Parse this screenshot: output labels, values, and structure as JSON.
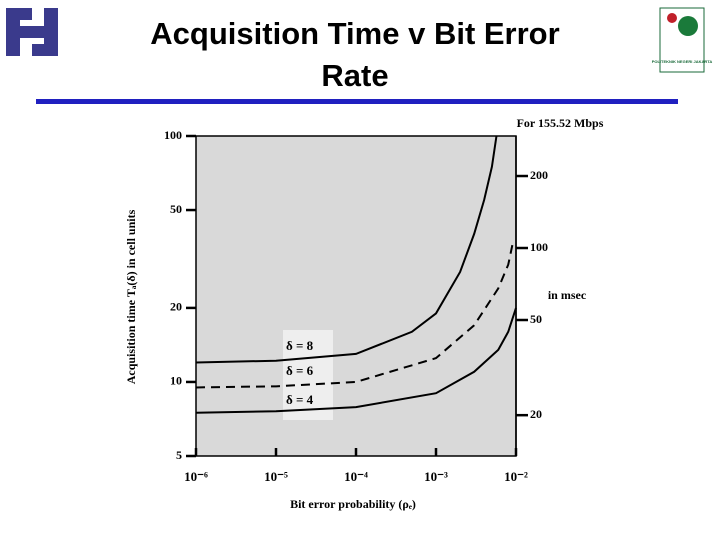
{
  "slide_title": "Acquisition Time v Bit Error Rate",
  "logo_text": "POLITEKNIK NEGERI JAKARTA",
  "chart_data": {
    "type": "line",
    "y_label": "Acquisition time Tₐ(δ) in cell units",
    "x_label": "Bit error probability (ρₑ)",
    "y2_title": "For 155.52 Mbps",
    "y2_label": "in msec",
    "xscale": "log",
    "yscale": "log",
    "y2scale": "log",
    "xlim": [
      1e-06,
      0.01
    ],
    "xticks": [
      {
        "value": 1e-06,
        "label": "10⁻⁶"
      },
      {
        "value": 1e-05,
        "label": "10⁻⁵"
      },
      {
        "value": 0.0001,
        "label": "10⁻⁴"
      },
      {
        "value": 0.001,
        "label": "10⁻³"
      },
      {
        "value": 0.01,
        "label": "10⁻²"
      }
    ],
    "ylim": [
      5,
      100
    ],
    "yticks": [
      5,
      10,
      20,
      50,
      100
    ],
    "y2lim": [
      13.5,
      294
    ],
    "y2ticks": [
      20,
      50,
      100,
      200
    ],
    "background": "#d9d9d9",
    "series": [
      {
        "name": "δ = 8",
        "color": "#000000",
        "style": "solid",
        "x": [
          1e-06,
          1e-05,
          0.0001,
          0.0005,
          0.001,
          0.002,
          0.003,
          0.004,
          0.005,
          0.0057
        ],
        "values": [
          12,
          12.2,
          13,
          16,
          19,
          28,
          40,
          55,
          75,
          100
        ]
      },
      {
        "name": "δ = 6",
        "color": "#000000",
        "style": "dashed",
        "x": [
          1e-06,
          1e-05,
          0.0001,
          0.001,
          0.003,
          0.006,
          0.008,
          0.009
        ],
        "values": [
          9.5,
          9.6,
          10,
          12.5,
          17,
          24,
          30,
          36
        ]
      },
      {
        "name": "δ = 4",
        "color": "#000000",
        "style": "solid",
        "x": [
          1e-06,
          1e-05,
          0.0001,
          0.001,
          0.003,
          0.006,
          0.008,
          0.01
        ],
        "values": [
          7.5,
          7.6,
          7.9,
          9,
          11,
          13.5,
          16,
          20
        ]
      }
    ]
  }
}
